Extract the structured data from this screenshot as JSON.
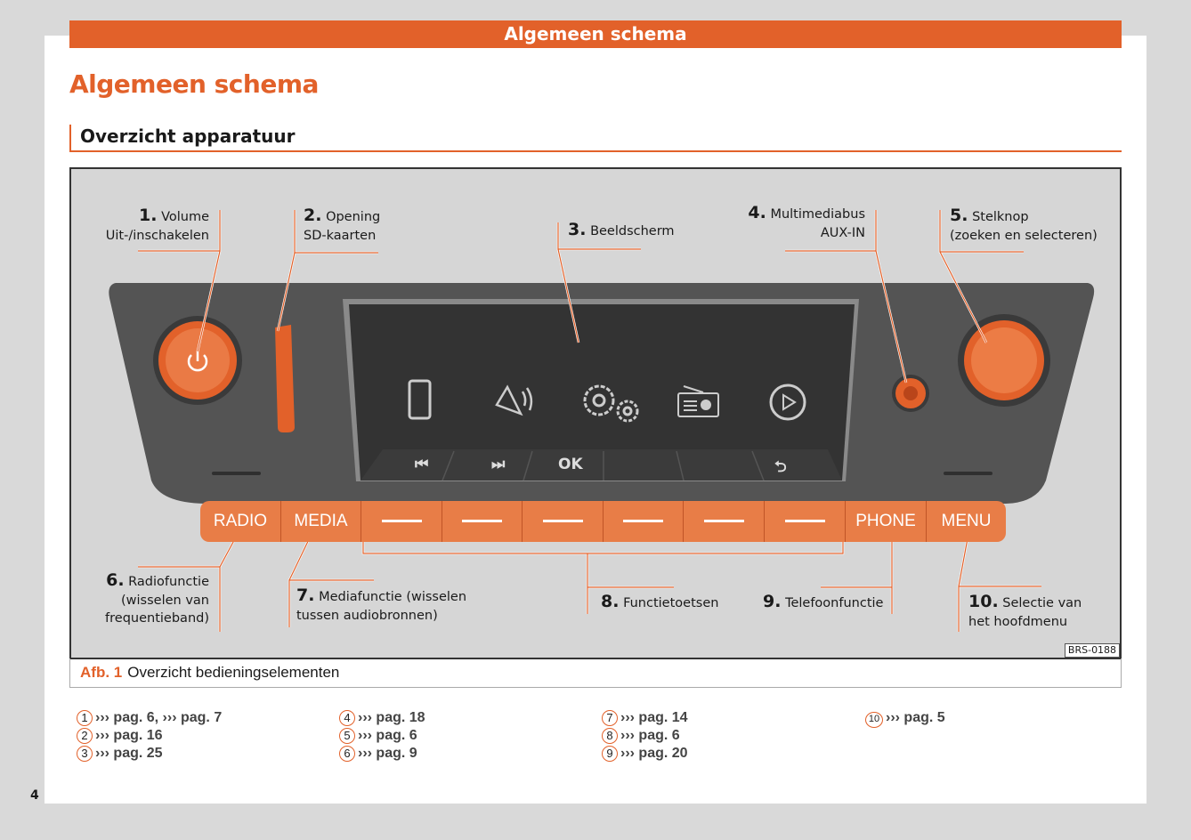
{
  "header": {
    "bar_title": "Algemeen schema",
    "page_title": "Algemeen schema",
    "section_title": "Overzicht apparatuur"
  },
  "figure": {
    "labels": [
      {
        "num": "1.",
        "lines": [
          "Volume",
          "Uit-/inschakelen"
        ]
      },
      {
        "num": "2.",
        "lines": [
          "Opening",
          "SD-kaarten"
        ]
      },
      {
        "num": "3.",
        "lines": [
          "Beeldscherm"
        ]
      },
      {
        "num": "4.",
        "lines": [
          "Multimediabus",
          "AUX-IN"
        ]
      },
      {
        "num": "5.",
        "lines": [
          "Stelknop",
          "(zoeken en selecteren)"
        ]
      },
      {
        "num": "6.",
        "lines": [
          "Radiofunctie",
          "(wisselen van",
          "frequentieband)"
        ]
      },
      {
        "num": "7.",
        "lines": [
          "Mediafunctie (wisselen",
          "tussen audiobronnen)"
        ]
      },
      {
        "num": "8.",
        "lines": [
          "Functietoetsen"
        ]
      },
      {
        "num": "9.",
        "lines": [
          "Telefoonfunctie"
        ]
      },
      {
        "num": "10.",
        "lines": [
          "Selectie van",
          "het hoofdmenu"
        ]
      }
    ],
    "buttons": {
      "radio": "RADIO",
      "media": "MEDIA",
      "phone": "PHONE",
      "menu": "MENU"
    },
    "softkeys": {
      "ok": "OK",
      "prev": "⏮",
      "next": "⏭",
      "back": "⮌"
    },
    "code": "BRS-0188",
    "caption_prefix": "Afb. 1",
    "caption": "Overzicht bedieningselementen",
    "accent": "#e2612a"
  },
  "references": [
    {
      "n": "1",
      "text": "››› pag. 6, ››› pag. 7"
    },
    {
      "n": "2",
      "text": "››› pag. 16"
    },
    {
      "n": "3",
      "text": "››› pag. 25"
    },
    {
      "n": "4",
      "text": "››› pag. 18"
    },
    {
      "n": "5",
      "text": "››› pag. 6"
    },
    {
      "n": "6",
      "text": "››› pag. 9"
    },
    {
      "n": "7",
      "text": "››› pag. 14"
    },
    {
      "n": "8",
      "text": "››› pag. 6"
    },
    {
      "n": "9",
      "text": "››› pag. 20"
    },
    {
      "n": "10",
      "text": "››› pag. 5"
    }
  ],
  "page_number": "4"
}
